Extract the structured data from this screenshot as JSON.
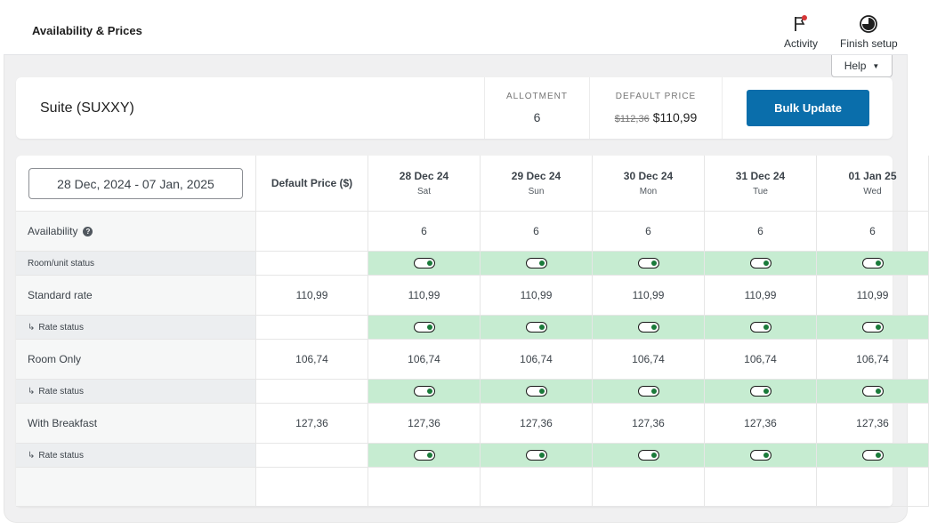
{
  "header": {
    "title": "Availability & Prices",
    "activity_label": "Activity",
    "finish_label": "Finish setup",
    "help_label": "Help"
  },
  "room": {
    "name": "Suite (SUXXY)",
    "allotment_label": "ALLOTMENT",
    "allotment_value": "6",
    "default_price_label": "DEFAULT PRICE",
    "old_price": "$112,36",
    "new_price": "$110,99",
    "bulk_label": "Bulk Update"
  },
  "grid": {
    "date_range": "28 Dec, 2024 - 07 Jan, 2025",
    "default_price_header": "Default Price ($)",
    "days": [
      {
        "date": "28 Dec 24",
        "weekday": "Sat"
      },
      {
        "date": "29 Dec 24",
        "weekday": "Sun"
      },
      {
        "date": "30 Dec 24",
        "weekday": "Mon"
      },
      {
        "date": "31 Dec 24",
        "weekday": "Tue"
      },
      {
        "date": "01 Jan 25",
        "weekday": "Wed"
      }
    ],
    "rows": [
      {
        "label": "Availability",
        "type": "main",
        "help": true,
        "default": "",
        "values": [
          "6",
          "6",
          "6",
          "6",
          "6"
        ]
      },
      {
        "label": "Room/unit status",
        "type": "status",
        "default": "",
        "values": [
          true,
          true,
          true,
          true,
          true
        ]
      },
      {
        "label": "Standard rate",
        "type": "main",
        "default": "110,99",
        "values": [
          "110,99",
          "110,99",
          "110,99",
          "110,99",
          "110,99"
        ]
      },
      {
        "label": "Rate status",
        "type": "status",
        "indent": true,
        "default": "",
        "values": [
          true,
          true,
          true,
          true,
          true
        ]
      },
      {
        "label": "Room Only",
        "type": "main",
        "default": "106,74",
        "values": [
          "106,74",
          "106,74",
          "106,74",
          "106,74",
          "106,74"
        ]
      },
      {
        "label": "Rate status",
        "type": "status",
        "indent": true,
        "default": "",
        "values": [
          true,
          true,
          true,
          true,
          true
        ]
      },
      {
        "label": "With Breakfast",
        "type": "main",
        "default": "127,36",
        "values": [
          "127,36",
          "127,36",
          "127,36",
          "127,36",
          "127,36"
        ]
      },
      {
        "label": "Rate status",
        "type": "status",
        "indent": true,
        "default": "",
        "values": [
          true,
          true,
          true,
          true,
          true
        ]
      }
    ]
  },
  "colors": {
    "accent": "#0a6eab",
    "status_green": "#c6ecd1"
  }
}
